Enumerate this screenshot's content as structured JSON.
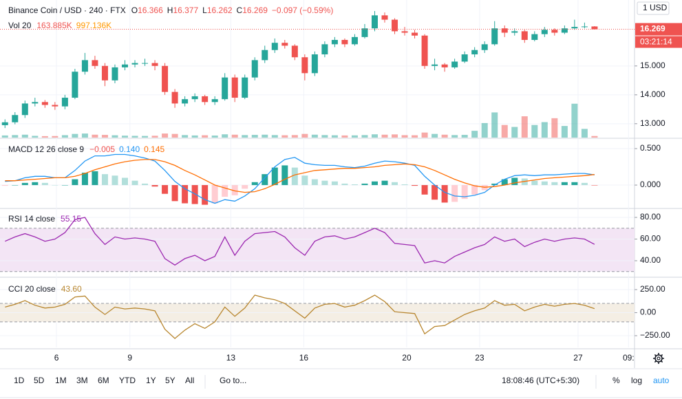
{
  "chart_data": [
    {
      "type": "candlestick",
      "title": "Binance Coin / USD · 240 · FTX",
      "legend": [
        {
          "text": "O",
          "color": "#131722"
        },
        {
          "text": "16.366",
          "color": "#ef5350"
        },
        {
          "text": "H",
          "color": "#131722"
        },
        {
          "text": "16.377",
          "color": "#ef5350"
        },
        {
          "text": "L",
          "color": "#131722"
        },
        {
          "text": "16.262",
          "color": "#ef5350"
        },
        {
          "text": "C",
          "color": "#131722"
        },
        {
          "text": "16.269",
          "color": "#ef5350"
        },
        {
          "text": "−0.097 (−0.59%)",
          "color": "#ef5350"
        }
      ],
      "open": [
        12.95,
        13.05,
        13.3,
        13.7,
        13.75,
        13.65,
        13.6,
        13.9,
        14.8,
        15.2,
        15.0,
        14.5,
        14.95,
        15.05,
        15.1,
        15.1,
        15.0,
        14.1,
        13.7,
        13.85,
        13.95,
        13.75,
        13.85,
        14.6,
        13.9,
        14.6,
        15.2,
        15.55,
        15.8,
        15.7,
        15.3,
        14.75,
        15.4,
        15.75,
        15.9,
        15.75,
        16.0,
        16.3,
        16.75,
        16.6,
        16.2,
        16.15,
        16.05,
        15.0,
        15.05,
        14.95,
        15.15,
        15.4,
        15.55,
        15.75,
        16.3,
        16.15,
        16.2,
        15.9,
        16.1,
        16.25,
        16.15,
        16.3,
        16.35,
        16.366
      ],
      "high": [
        13.15,
        13.4,
        13.8,
        13.9,
        13.82,
        13.75,
        14.0,
        14.9,
        15.45,
        15.35,
        15.1,
        15.05,
        15.2,
        15.2,
        15.25,
        15.2,
        15.1,
        14.2,
        13.95,
        14.05,
        14.0,
        13.95,
        14.75,
        14.7,
        14.7,
        15.3,
        15.7,
        15.95,
        15.9,
        15.75,
        15.4,
        15.5,
        15.85,
        16.0,
        15.95,
        16.1,
        16.45,
        16.9,
        16.85,
        16.65,
        16.35,
        16.25,
        16.1,
        15.25,
        15.1,
        15.25,
        15.5,
        15.65,
        15.85,
        16.55,
        16.4,
        16.3,
        16.25,
        16.2,
        16.35,
        16.3,
        16.4,
        16.6,
        16.5,
        16.377
      ],
      "low": [
        12.85,
        12.98,
        13.2,
        13.6,
        13.55,
        13.48,
        13.5,
        13.85,
        14.7,
        14.9,
        14.3,
        14.4,
        14.85,
        14.95,
        15.0,
        14.85,
        14.0,
        13.55,
        13.6,
        13.75,
        13.65,
        13.65,
        13.8,
        13.75,
        13.85,
        14.5,
        15.1,
        15.45,
        15.6,
        15.2,
        14.5,
        14.65,
        15.3,
        15.65,
        15.65,
        15.7,
        15.95,
        16.2,
        16.5,
        16.1,
        16.05,
        15.95,
        14.9,
        14.85,
        14.8,
        14.9,
        15.1,
        15.3,
        15.45,
        15.7,
        16.0,
        16.05,
        15.8,
        15.85,
        16.0,
        16.05,
        16.1,
        16.25,
        16.3,
        16.262
      ],
      "close": [
        13.05,
        13.3,
        13.7,
        13.75,
        13.65,
        13.6,
        13.9,
        14.8,
        15.2,
        15.0,
        14.5,
        14.95,
        15.05,
        15.1,
        15.1,
        15.0,
        14.1,
        13.7,
        13.85,
        13.95,
        13.75,
        13.85,
        14.6,
        13.9,
        14.6,
        15.2,
        15.55,
        15.8,
        15.7,
        15.3,
        14.75,
        15.4,
        15.75,
        15.9,
        15.75,
        16.0,
        16.3,
        16.75,
        16.6,
        16.2,
        16.15,
        16.05,
        15.0,
        15.05,
        14.95,
        15.15,
        15.4,
        15.55,
        15.75,
        16.3,
        16.15,
        16.2,
        15.9,
        16.1,
        16.25,
        16.15,
        16.3,
        16.35,
        16.366,
        16.269
      ],
      "up_color": "#26a69a",
      "down_color": "#ef5350",
      "ylim": [
        12.52,
        17.21
      ],
      "yticks": [
        {
          "value": 13,
          "label": "13.000"
        },
        {
          "value": 14,
          "label": "14.000"
        },
        {
          "value": 15,
          "label": "15.000"
        }
      ],
      "xlim": [
        -0.5,
        63
      ],
      "xticks": [
        {
          "value": 5.15,
          "label": "6"
        },
        {
          "value": 12.5,
          "label": "9"
        },
        {
          "value": 22.6,
          "label": "13"
        },
        {
          "value": 29.9,
          "label": "16"
        },
        {
          "value": 40.2,
          "label": "20"
        },
        {
          "value": 47.5,
          "label": "23"
        },
        {
          "value": 57.35,
          "label": "27"
        },
        {
          "value": 62.4,
          "label": "09:"
        }
      ],
      "unit_label": "1 USD",
      "last_price_label": "16.269",
      "countdown": "03:21:14",
      "grid": true
    },
    {
      "type": "bar",
      "title": "Vol 20",
      "legend": [
        {
          "text": "163.885K",
          "color": "#ef5350"
        },
        {
          "text": "997.136K",
          "color": "#ff9800"
        }
      ],
      "values": [
        220,
        260,
        300,
        180,
        150,
        160,
        250,
        380,
        420,
        300,
        280,
        240,
        200,
        180,
        170,
        190,
        420,
        380,
        260,
        220,
        240,
        210,
        340,
        300,
        260,
        280,
        300,
        260,
        240,
        260,
        380,
        300,
        260,
        240,
        220,
        230,
        260,
        340,
        300,
        330,
        250,
        240,
        520,
        380,
        300,
        260,
        280,
        700,
        1500,
        2600,
        1300,
        1100,
        2200,
        1300,
        1600,
        2000,
        1200,
        3500,
        900,
        163.885
      ],
      "ylim": [
        0,
        14000
      ]
    },
    {
      "type": "line",
      "title": "MACD 12 26 close 9",
      "legend": [
        {
          "text": "−0.005",
          "color": "#ef5350"
        },
        {
          "text": "0.140",
          "color": "#2196f3"
        },
        {
          "text": "0.145",
          "color": "#ff6d00"
        }
      ],
      "series": [
        {
          "style": "histogram",
          "colors": [
            "#26a69a",
            "#b2dfdb",
            "#ffcdd2",
            "#ef5350"
          ],
          "values": [
            -0.01,
            0,
            0.03,
            0.04,
            0.03,
            0,
            0,
            0.08,
            0.17,
            0.19,
            0.15,
            0.13,
            0.1,
            0.06,
            0.02,
            -0.02,
            -0.12,
            -0.22,
            -0.25,
            -0.26,
            -0.27,
            -0.25,
            -0.16,
            -0.14,
            -0.05,
            0.04,
            0.15,
            0.24,
            0.27,
            0.24,
            0.13,
            0.08,
            0.06,
            0.05,
            0.02,
            0.01,
            0.02,
            0.05,
            0.06,
            0.04,
            0.01,
            -0.01,
            -0.13,
            -0.2,
            -0.24,
            -0.23,
            -0.19,
            -0.13,
            -0.07,
            0.02,
            0.08,
            0.1,
            0.09,
            0.06,
            0.05,
            0.04,
            0.04,
            0.04,
            0.03,
            -0.005
          ]
        },
        {
          "color": "#2196f3",
          "values": [
            0.05,
            0.06,
            0.1,
            0.12,
            0.12,
            0.1,
            0.1,
            0.2,
            0.33,
            0.4,
            0.4,
            0.42,
            0.42,
            0.4,
            0.37,
            0.33,
            0.2,
            0.05,
            -0.05,
            -0.12,
            -0.2,
            -0.25,
            -0.2,
            -0.22,
            -0.15,
            -0.05,
            0.1,
            0.25,
            0.35,
            0.38,
            0.3,
            0.28,
            0.27,
            0.27,
            0.25,
            0.24,
            0.26,
            0.3,
            0.33,
            0.32,
            0.3,
            0.27,
            0.12,
            0.0,
            -0.1,
            -0.15,
            -0.16,
            -0.14,
            -0.1,
            0.0,
            0.08,
            0.13,
            0.14,
            0.13,
            0.14,
            0.14,
            0.15,
            0.16,
            0.16,
            0.14
          ]
        },
        {
          "color": "#ff6d00",
          "values": [
            0.06,
            0.06,
            0.07,
            0.08,
            0.09,
            0.1,
            0.1,
            0.12,
            0.16,
            0.21,
            0.25,
            0.29,
            0.32,
            0.34,
            0.35,
            0.35,
            0.32,
            0.27,
            0.2,
            0.14,
            0.07,
            0.0,
            -0.04,
            -0.08,
            -0.1,
            -0.09,
            -0.05,
            0.01,
            0.08,
            0.14,
            0.17,
            0.2,
            0.21,
            0.22,
            0.23,
            0.23,
            0.24,
            0.25,
            0.27,
            0.28,
            0.29,
            0.28,
            0.25,
            0.2,
            0.14,
            0.08,
            0.03,
            -0.01,
            -0.03,
            -0.02,
            0.0,
            0.03,
            0.05,
            0.07,
            0.09,
            0.1,
            0.11,
            0.12,
            0.13,
            0.145
          ]
        }
      ],
      "ylim": [
        -0.311,
        0.623
      ],
      "yticks": [
        {
          "value": 0.5,
          "label": "0.500"
        },
        {
          "value": 0,
          "label": "0.000"
        }
      ]
    },
    {
      "type": "line",
      "title": "RSI 14 close",
      "legend": [
        {
          "text": "55.15",
          "color": "#9c27b0"
        }
      ],
      "series": [
        {
          "color": "#9c27b0",
          "values": [
            58,
            62,
            65,
            62,
            58,
            60,
            66,
            78,
            80,
            65,
            55,
            62,
            60,
            61,
            60,
            58,
            42,
            36,
            42,
            45,
            40,
            44,
            62,
            45,
            58,
            65,
            66,
            67,
            62,
            52,
            45,
            58,
            62,
            63,
            60,
            62,
            66,
            70,
            66,
            56,
            55,
            54,
            38,
            40,
            38,
            44,
            48,
            52,
            55,
            62,
            58,
            60,
            53,
            57,
            60,
            58,
            60,
            61,
            60,
            55.15
          ]
        }
      ],
      "bands": [
        30,
        70
      ],
      "band_color": "#f3e5f5",
      "ylim": [
        25.4,
        87
      ],
      "yticks": [
        {
          "value": 80,
          "label": "80.00"
        },
        {
          "value": 60,
          "label": "60.00"
        },
        {
          "value": 40,
          "label": "40.00"
        }
      ]
    },
    {
      "type": "line",
      "title": "CCI 20 close",
      "legend": [
        {
          "text": "43.60",
          "color": "#b8862e"
        }
      ],
      "series": [
        {
          "color": "#b8862e",
          "values": [
            60,
            90,
            130,
            80,
            50,
            60,
            90,
            170,
            180,
            60,
            -20,
            60,
            40,
            50,
            40,
            20,
            -180,
            -280,
            -190,
            -120,
            -170,
            -100,
            60,
            -40,
            50,
            190,
            160,
            140,
            100,
            20,
            -60,
            50,
            90,
            100,
            60,
            80,
            130,
            190,
            120,
            10,
            0,
            -10,
            -230,
            -150,
            -140,
            -80,
            -20,
            20,
            50,
            130,
            80,
            90,
            20,
            60,
            90,
            70,
            90,
            100,
            80,
            43.6
          ]
        }
      ],
      "bands": [
        -100,
        100
      ],
      "band_color": "#f4eee4",
      "ylim": [
        -377,
        369
      ],
      "yticks": [
        {
          "value": 250,
          "label": "250.00"
        },
        {
          "value": 0,
          "label": "0.00"
        },
        {
          "value": -250,
          "label": "−250.00"
        }
      ]
    }
  ],
  "toolbar": {
    "ranges": [
      "1D",
      "5D",
      "1M",
      "3M",
      "6M",
      "YTD",
      "1Y",
      "5Y",
      "All"
    ],
    "goto": "Go to...",
    "time": "18:08:46 (UTC+5:30)",
    "options": [
      "%",
      "log",
      "auto"
    ]
  }
}
